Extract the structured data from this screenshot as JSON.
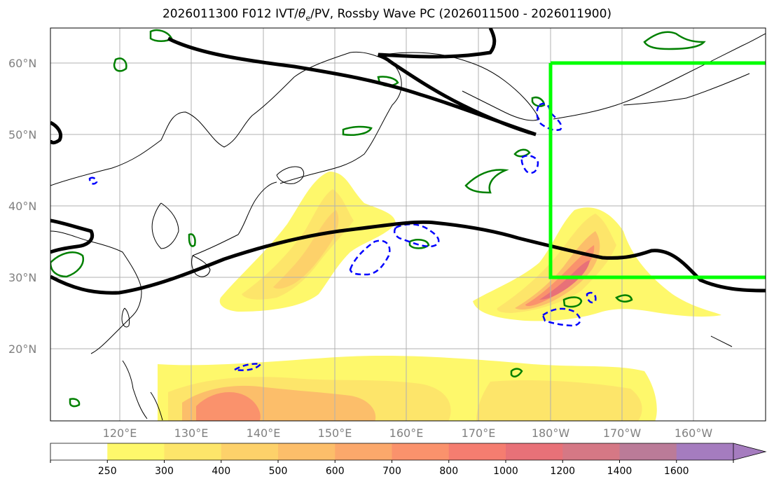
{
  "title": "2026011300 F012 IVT/θₑ/PV, Rossby Wave PC (2026011500 - 2026011900)",
  "title_parts": {
    "pre": "2026011300 F012 IVT/",
    "theta": "θ",
    "sub": "e",
    "post": "/PV, Rossby Wave PC (2026011500 - 2026011900)"
  },
  "lat_labels": [
    "60°N",
    "50°N",
    "40°N",
    "30°N",
    "20°N"
  ],
  "lon_labels": [
    "120°E",
    "130°E",
    "140°E",
    "150°E",
    "160°E",
    "170°E",
    "180°W",
    "170°W",
    "160°W"
  ],
  "colorbar": {
    "levels": [
      "250",
      "300",
      "400",
      "500",
      "600",
      "700",
      "800",
      "1000",
      "1200",
      "1400",
      "1600"
    ],
    "colors": [
      "#ffffff",
      "#fef86b",
      "#fde56a",
      "#fdd16a",
      "#fcbe6a",
      "#fba86b",
      "#fa926c",
      "#f57d70",
      "#e87178",
      "#d57885",
      "#bb7b98",
      "#a57cbf"
    ]
  },
  "colors": {
    "rossby_box": "#00ff00",
    "contour_black": "#000000",
    "pv_green": "#008000",
    "pv_blue_dashed": "#0000ff"
  }
}
